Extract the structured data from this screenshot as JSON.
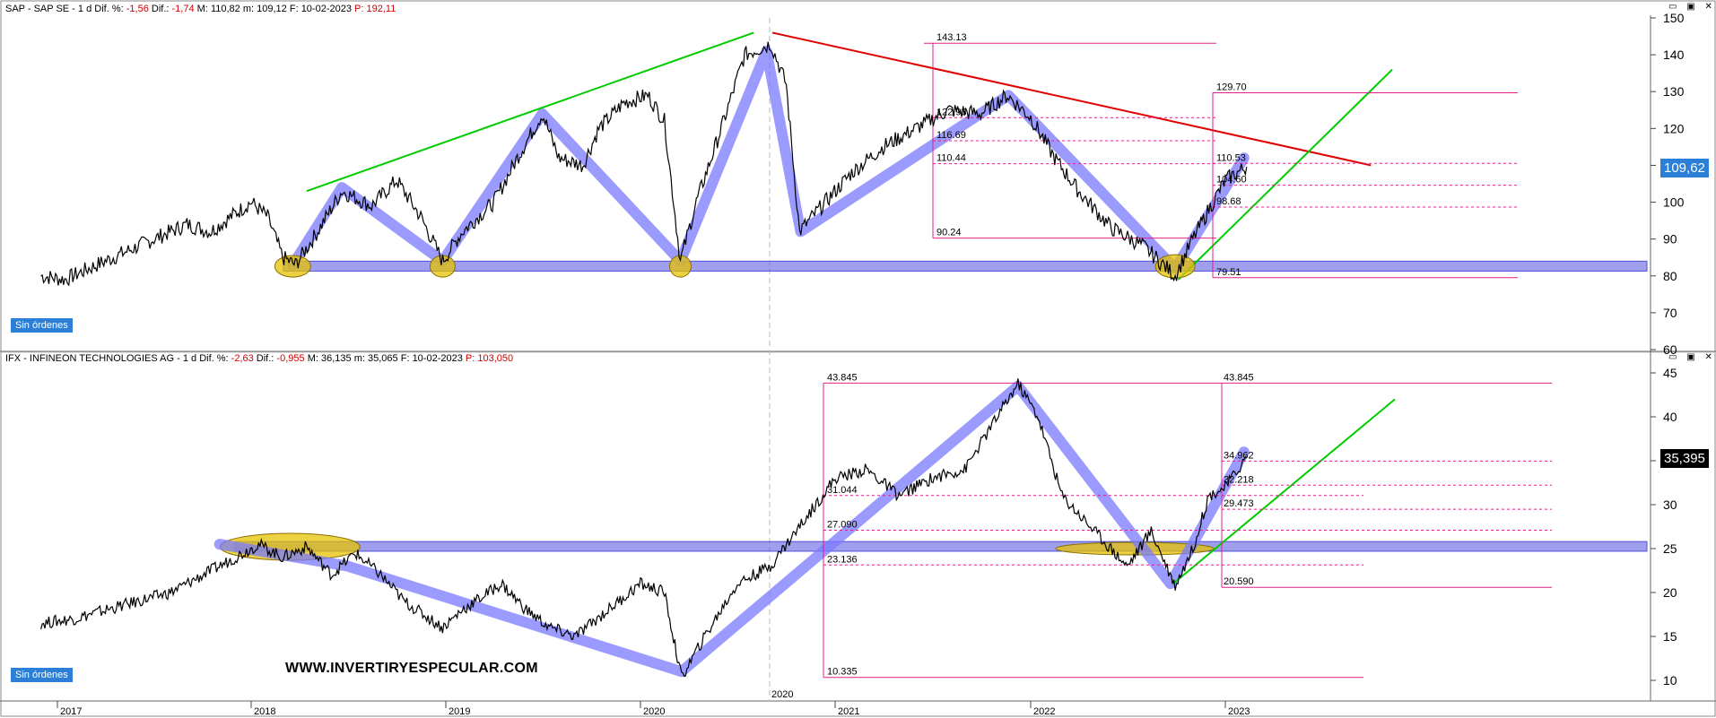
{
  "panels": [
    {
      "header": {
        "symbol": "SAP - SAP SE - 1 d",
        "dif_pct_label": "Dif. %:",
        "dif_pct": "-1,56",
        "dif_label": "Dif.:",
        "dif": "-1,74",
        "max_label": "M:",
        "max": "110,82",
        "min_label": "m:",
        "min": "109,12",
        "date_label": "F:",
        "date": "10-02-2023",
        "p_label": "P:",
        "p": "192,11"
      },
      "badge": "Sin órdenes",
      "last_price": "109,62"
    },
    {
      "header": {
        "symbol": "IFX - INFINEON TECHNOLOGIES AG - 1 d",
        "dif_pct_label": "Dif. %:",
        "dif_pct": "-2,63",
        "dif_label": "Dif.:",
        "dif": "-0,955",
        "max_label": "M:",
        "max": "36,135",
        "min_label": "m:",
        "min": "35,065",
        "date_label": "F:",
        "date": "10-02-2023",
        "p_label": "P:",
        "p": "103,050"
      },
      "badge": "Sin órdenes",
      "last_price": "35,395",
      "watermark": "WWW.INVERTIRYESPECULAR.COM"
    }
  ],
  "window_buttons": "▭ ▣ ✕",
  "colors": {
    "price": "#000000",
    "zigzag": "#7a7aff",
    "support_band": "#5050e0",
    "retracement": "#e0208a",
    "uptrend": "#00cc00",
    "downtrend": "#e00000",
    "highlight": "#e6c200",
    "badge": "#2b7fd6"
  },
  "chart_data": [
    {
      "type": "line",
      "x_axis": {
        "range": [
          "2016-12-01",
          "2023-12-01"
        ],
        "tick_labels": [
          "2017",
          "2018",
          "2019",
          "2020",
          "2021",
          "2022",
          "2023"
        ]
      },
      "y_axis": {
        "range": [
          60,
          150
        ],
        "tick_labels": [
          60,
          70,
          80,
          90,
          100,
          110,
          120,
          130,
          140,
          150
        ],
        "position": "right"
      },
      "series": [
        {
          "values": [
            [
              "2016-12-01",
              80
            ],
            [
              "2017-01-15",
              79
            ],
            [
              "2017-03-01",
              82
            ],
            [
              "2017-05-01",
              86
            ],
            [
              "2017-07-01",
              90
            ],
            [
              "2017-09-01",
              94
            ],
            [
              "2017-10-15",
              92
            ],
            [
              "2017-12-01",
              97
            ],
            [
              "2018-01-01",
              100
            ],
            [
              "2018-02-01",
              96
            ],
            [
              "2018-03-01",
              85
            ],
            [
              "2018-03-25",
              83
            ],
            [
              "2018-05-01",
              91
            ],
            [
              "2018-06-20",
              103
            ],
            [
              "2018-08-15",
              99
            ],
            [
              "2018-10-01",
              106
            ],
            [
              "2018-11-15",
              96
            ],
            [
              "2018-12-26",
              84
            ],
            [
              "2019-02-01",
              92
            ],
            [
              "2019-04-01",
              100
            ],
            [
              "2019-05-15",
              112
            ],
            [
              "2019-07-01",
              124
            ],
            [
              "2019-08-01",
              112
            ],
            [
              "2019-09-15",
              110
            ],
            [
              "2019-10-15",
              120
            ],
            [
              "2019-12-01",
              127
            ],
            [
              "2020-01-15",
              129
            ],
            [
              "2020-02-15",
              122
            ],
            [
              "2020-03-16",
              84
            ],
            [
              "2020-04-15",
              100
            ],
            [
              "2020-06-01",
              120
            ],
            [
              "2020-07-15",
              140
            ],
            [
              "2020-09-02",
              143
            ],
            [
              "2020-10-01",
              132
            ],
            [
              "2020-10-26",
              92
            ],
            [
              "2020-12-01",
              98
            ],
            [
              "2021-02-01",
              108
            ],
            [
              "2021-04-01",
              115
            ],
            [
              "2021-06-01",
              120
            ],
            [
              "2021-08-01",
              125
            ],
            [
              "2021-10-01",
              124
            ],
            [
              "2021-11-20",
              129
            ],
            [
              "2022-01-01",
              123
            ],
            [
              "2022-02-15",
              112
            ],
            [
              "2022-04-01",
              103
            ],
            [
              "2022-06-01",
              93
            ],
            [
              "2022-08-01",
              88
            ],
            [
              "2022-09-29",
              80
            ],
            [
              "2022-11-01",
              90
            ],
            [
              "2022-12-01",
              98
            ],
            [
              "2023-01-01",
              106
            ],
            [
              "2023-02-10",
              109.6
            ]
          ]
        }
      ],
      "annotations": [
        "143.13",
        "122.93",
        "116.69",
        "110.44",
        "90.24",
        "129.70",
        "110.53",
        "104.60",
        "98.68",
        "79.51"
      ],
      "grid": false
    },
    {
      "type": "line",
      "x_axis": {
        "range": [
          "2016-12-01",
          "2023-12-01"
        ],
        "tick_labels": [
          "2017",
          "2018",
          "2019",
          "2020",
          "2021",
          "2022",
          "2023"
        ]
      },
      "y_axis": {
        "range": [
          10,
          45
        ],
        "tick_labels": [
          10,
          15,
          20,
          25,
          30,
          35,
          40,
          45
        ],
        "position": "right"
      },
      "series": [
        {
          "values": [
            [
              "2016-12-01",
              16.5
            ],
            [
              "2017-02-01",
              17
            ],
            [
              "2017-04-01",
              18
            ],
            [
              "2017-06-01",
              19
            ],
            [
              "2017-08-01",
              20
            ],
            [
              "2017-10-01",
              22
            ],
            [
              "2017-12-01",
              24
            ],
            [
              "2018-01-15",
              25.5
            ],
            [
              "2018-03-01",
              24
            ],
            [
              "2018-04-15",
              25.2
            ],
            [
              "2018-06-01",
              22
            ],
            [
              "2018-07-15",
              24.5
            ],
            [
              "2018-09-01",
              22
            ],
            [
              "2018-10-15",
              19
            ],
            [
              "2018-12-26",
              16
            ],
            [
              "2019-02-01",
              18
            ],
            [
              "2019-04-15",
              21
            ],
            [
              "2019-06-01",
              18
            ],
            [
              "2019-07-15",
              16
            ],
            [
              "2019-09-01",
              15
            ],
            [
              "2019-11-01",
              18
            ],
            [
              "2020-01-01",
              21
            ],
            [
              "2020-02-15",
              20
            ],
            [
              "2020-03-18",
              10.3
            ],
            [
              "2020-05-01",
              15
            ],
            [
              "2020-07-01",
              21
            ],
            [
              "2020-09-01",
              23
            ],
            [
              "2020-11-01",
              28
            ],
            [
              "2021-01-01",
              33
            ],
            [
              "2021-03-01",
              34
            ],
            [
              "2021-05-01",
              31
            ],
            [
              "2021-07-01",
              33
            ],
            [
              "2021-09-01",
              34
            ],
            [
              "2021-11-01",
              40
            ],
            [
              "2021-12-10",
              43.8
            ],
            [
              "2022-01-15",
              40
            ],
            [
              "2022-03-01",
              31
            ],
            [
              "2022-05-01",
              27
            ],
            [
              "2022-07-01",
              23
            ],
            [
              "2022-08-15",
              27
            ],
            [
              "2022-09-29",
              20.8
            ],
            [
              "2022-11-01",
              25
            ],
            [
              "2022-12-01",
              31
            ],
            [
              "2023-01-01",
              32
            ],
            [
              "2023-02-10",
              35.4
            ]
          ]
        }
      ],
      "annotations": [
        "43.845",
        "43.845",
        "31.044",
        "27.090",
        "23.136",
        "10.335",
        "34.962",
        "32.218",
        "29.473",
        "20.590"
      ],
      "grid": false
    }
  ]
}
